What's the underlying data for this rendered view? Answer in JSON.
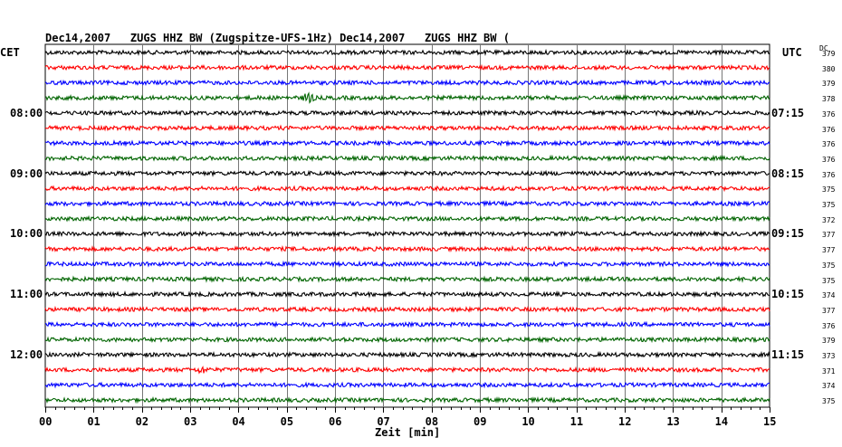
{
  "header": {
    "title_left": "Dec14,2007   ZUGS HHZ BW (Zugspitze-UFS-1Hz) Dec14,2007   ZUGS HHZ BW (",
    "tz_left": "CET",
    "tz_right": "UTC",
    "dc_label": "DC"
  },
  "chart_data": {
    "type": "line",
    "title": "Dec14,2007   ZUGS HHZ BW (Zugspitze-UFS-1Hz) Dec14,2007   ZUGS HHZ BW (",
    "xlabel": "Zeit [min]",
    "ylabel": "",
    "xlim": [
      0,
      15
    ],
    "x_ticks": [
      "00",
      "01",
      "02",
      "03",
      "04",
      "05",
      "06",
      "07",
      "08",
      "09",
      "10",
      "11",
      "12",
      "13",
      "14",
      "15"
    ],
    "grid": "vertical",
    "trace_colors": [
      "#000000",
      "#ff0000",
      "#0000ff",
      "#006400"
    ],
    "left_time_labels": [
      "08:00",
      "09:00",
      "10:00",
      "11:00",
      "12:00"
    ],
    "right_time_labels": [
      "07:15",
      "08:15",
      "09:15",
      "10:15",
      "11:15"
    ],
    "hour_label_rows": [
      4,
      8,
      12,
      16,
      20
    ],
    "dc_values": [
      "379",
      "380",
      "379",
      "378",
      "376",
      "376",
      "376",
      "376",
      "376",
      "375",
      "375",
      "372",
      "377",
      "377",
      "375",
      "375",
      "374",
      "377",
      "376",
      "379",
      "373",
      "371",
      "374",
      "375"
    ],
    "events": [
      {
        "row": 3,
        "minute": 5.45,
        "amplitude": "high"
      },
      {
        "row": 21,
        "minute": 3.25,
        "amplitude": "medium"
      }
    ]
  }
}
